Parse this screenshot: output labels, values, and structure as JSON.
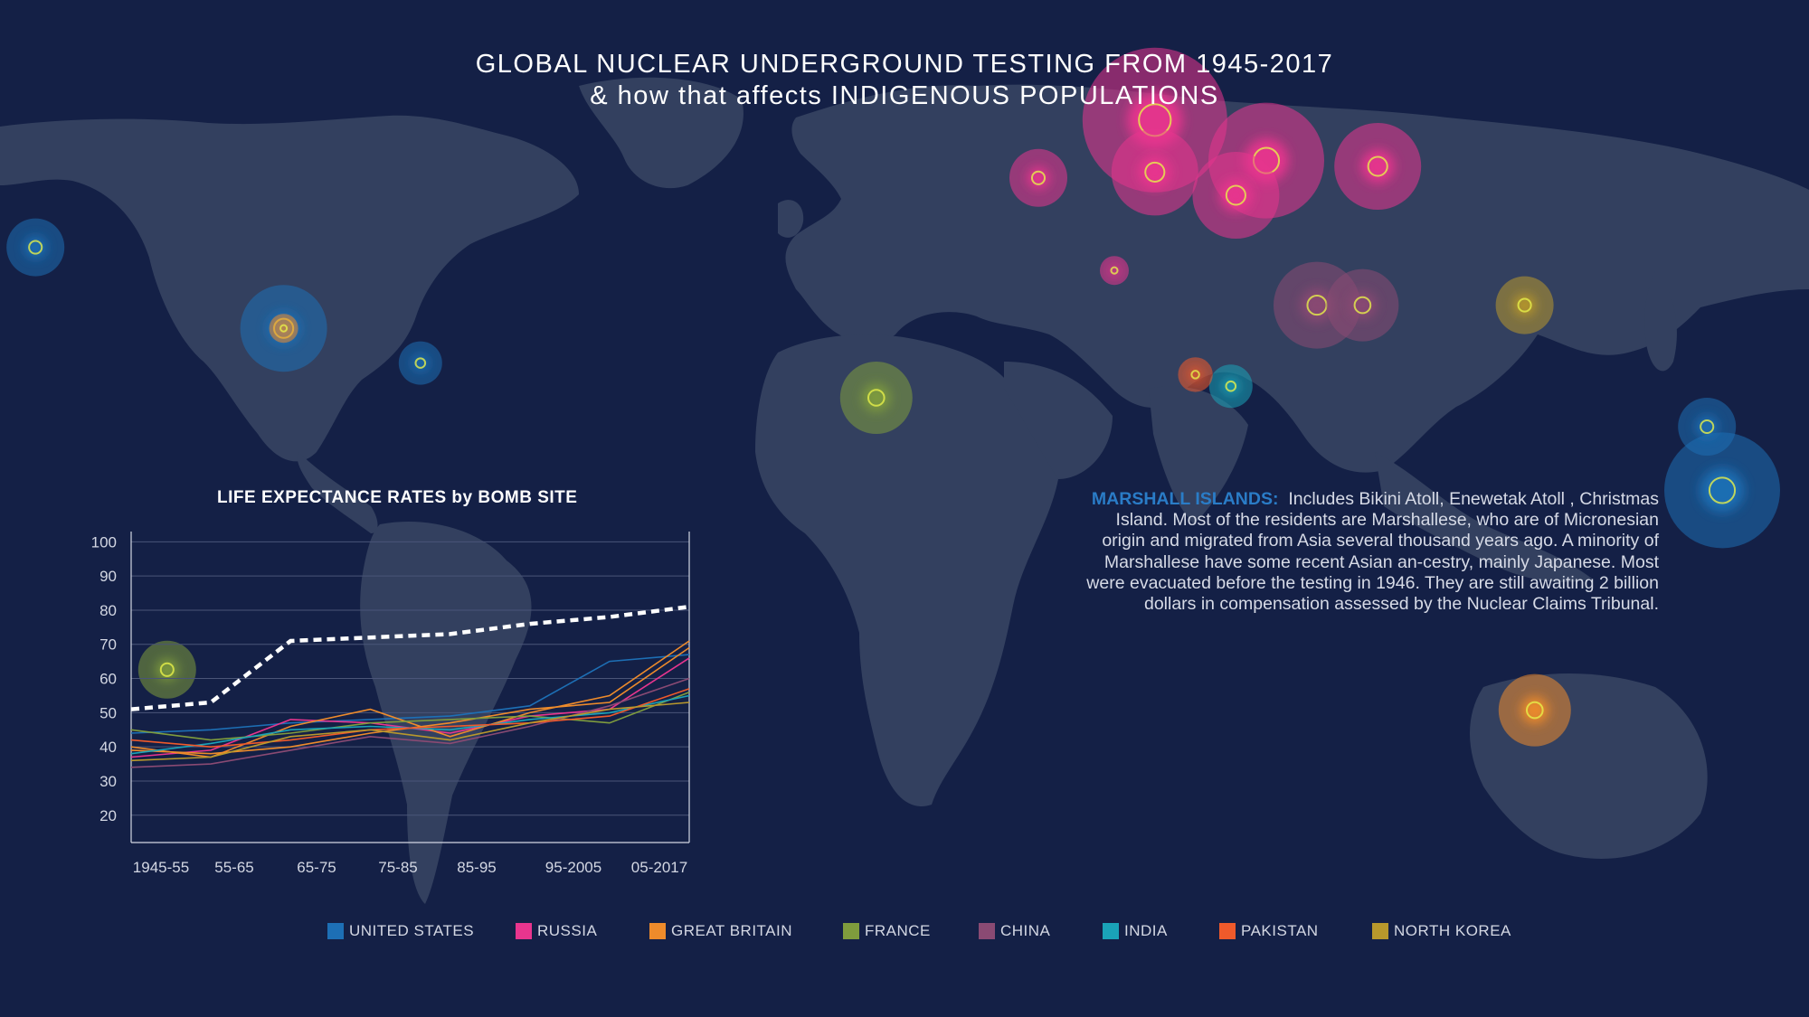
{
  "title": {
    "line1": "GLOBAL NUCLEAR UNDERGROUND TESTING  FROM 1945-2017",
    "line2": "& how that affects INDIGENOUS POPULATIONS"
  },
  "annotation": {
    "heading": "MARSHALL ISLANDS:",
    "body": "Includes Bikini Atoll, Enewetak Atoll , Christmas Island.  Most of the residents are Marshallese, who are of Micronesian origin and migrated from Asia several thousand years ago. A minority of Marshallese have some recent Asian an-cestry, mainly Japanese. Most were evacuated before the testing in 1946.  They are still awaiting 2 billion dollars in compensation assessed by the Nuclear Claims Tribunal."
  },
  "colors": {
    "background": "#142046",
    "land": "#33405f",
    "UNITED STATES": "#1d6fb5",
    "RUSSIA": "#e8358e",
    "GREAT BRITAIN": "#ee8b2b",
    "FRANCE": "#7f9c3d",
    "CHINA": "#8a4a73",
    "INDIA": "#1aa3b8",
    "PAKISTAN": "#ef5a2b",
    "NORTH KOREA": "#b8982c"
  },
  "legend": [
    {
      "label": "UNITED STATES",
      "color": "#1d6fb5"
    },
    {
      "label": "RUSSIA",
      "color": "#e8358e"
    },
    {
      "label": "GREAT BRITAIN",
      "color": "#ee8b2b"
    },
    {
      "label": "FRANCE",
      "color": "#7f9c3d"
    },
    {
      "label": "CHINA",
      "color": "#8a4a73"
    },
    {
      "label": "INDIA",
      "color": "#1aa3b8"
    },
    {
      "label": "PAKISTAN",
      "color": "#ef5a2b"
    },
    {
      "label": "NORTH KOREA",
      "color": "#b8982c"
    }
  ],
  "chart_data": [
    {
      "type": "scatter",
      "subtype": "bubble-map",
      "title": "GLOBAL NUCLEAR UNDERGROUND TESTING  FROM 1945-2017",
      "subtitle": "& how that affects INDIGENOUS POPULATIONS",
      "series": [
        {
          "name": "UNITED STATES",
          "color": "#1d6fb5",
          "points": [
            {
              "lon": -165,
              "lat": 51,
              "size": 2
            },
            {
              "lon": -116,
              "lat": 37,
              "size": 3
            },
            {
              "lon": -89,
              "lat": 31,
              "size": 1.5
            },
            {
              "lon": 168,
              "lat": 9,
              "size": 4
            },
            {
              "lon": 165,
              "lat": 20,
              "size": 2
            }
          ]
        },
        {
          "name": "RUSSIA",
          "color": "#e8358e",
          "points": [
            {
              "lon": 56,
              "lat": 73,
              "size": 5
            },
            {
              "lon": 56,
              "lat": 64,
              "size": 3
            },
            {
              "lon": 78,
              "lat": 66,
              "size": 4
            },
            {
              "lon": 72,
              "lat": 60,
              "size": 3
            },
            {
              "lon": 100,
              "lat": 65,
              "size": 3
            },
            {
              "lon": 33,
              "lat": 63,
              "size": 2
            },
            {
              "lon": 48,
              "lat": 47,
              "size": 1
            }
          ]
        },
        {
          "name": "GREAT BRITAIN",
          "color": "#ee8b2b",
          "points": [
            {
              "lon": -116,
              "lat": 37,
              "size": 1
            },
            {
              "lon": 131,
              "lat": -29,
              "size": 2.5
            }
          ]
        },
        {
          "name": "FRANCE",
          "color": "#7f9c3d",
          "points": [
            {
              "lon": 1,
              "lat": 25,
              "size": 2.5
            },
            {
              "lon": -139,
              "lat": -22,
              "size": 2
            }
          ]
        },
        {
          "name": "CHINA",
          "color": "#8a4a73",
          "points": [
            {
              "lon": 88,
              "lat": 41,
              "size": 3
            },
            {
              "lon": 97,
              "lat": 41,
              "size": 2.5
            }
          ]
        },
        {
          "name": "INDIA",
          "color": "#1aa3b8",
          "points": [
            {
              "lon": 71,
              "lat": 27,
              "size": 1.5
            }
          ]
        },
        {
          "name": "PAKISTAN",
          "color": "#ef5a2b",
          "points": [
            {
              "lon": 64,
              "lat": 29,
              "size": 1.2
            }
          ]
        },
        {
          "name": "NORTH KOREA",
          "color": "#b8982c",
          "points": [
            {
              "lon": 129,
              "lat": 41,
              "size": 2
            }
          ]
        }
      ]
    },
    {
      "type": "line",
      "title": "LIFE EXPECTANCE RATES by BOMB SITE",
      "categories": [
        "1945-55",
        "55-65",
        "65-75",
        "75-85",
        "85-95",
        "95-2005",
        "05-2017"
      ],
      "x_values": [
        0,
        1,
        2,
        3,
        4,
        5,
        6,
        7
      ],
      "y_ticks": [
        20,
        30,
        40,
        50,
        60,
        70,
        80,
        90,
        100
      ],
      "ylim": [
        12,
        103
      ],
      "grid": true,
      "series": [
        {
          "color": "#ffffff",
          "dashed": true,
          "values": [
            51,
            53,
            71,
            72,
            73,
            76,
            78,
            81
          ]
        },
        {
          "color": "#1d6fb5",
          "values": [
            44,
            45,
            47,
            48,
            49,
            52,
            65,
            67
          ]
        },
        {
          "color": "#e8358e",
          "values": [
            37,
            39,
            48,
            47,
            44,
            49,
            51,
            66
          ]
        },
        {
          "color": "#ee8b2b",
          "values": [
            40,
            37,
            46,
            51,
            43,
            50,
            55,
            71
          ]
        },
        {
          "color": "#ee8b2b",
          "values": [
            39,
            38,
            40,
            44,
            47,
            51,
            53,
            69
          ]
        },
        {
          "color": "#7f9c3d",
          "values": [
            45,
            42,
            44,
            47,
            48,
            49,
            47,
            56
          ]
        },
        {
          "color": "#8a4a73",
          "values": [
            34,
            35,
            39,
            43,
            41,
            46,
            52,
            60
          ]
        },
        {
          "color": "#1aa3b8",
          "values": [
            38,
            41,
            45,
            46,
            45,
            48,
            50,
            55
          ]
        },
        {
          "color": "#ef5a2b",
          "values": [
            42,
            40,
            42,
            45,
            46,
            47,
            49,
            57
          ]
        },
        {
          "color": "#b8982c",
          "values": [
            36,
            37,
            43,
            45,
            42,
            47,
            51,
            53
          ]
        }
      ]
    }
  ]
}
